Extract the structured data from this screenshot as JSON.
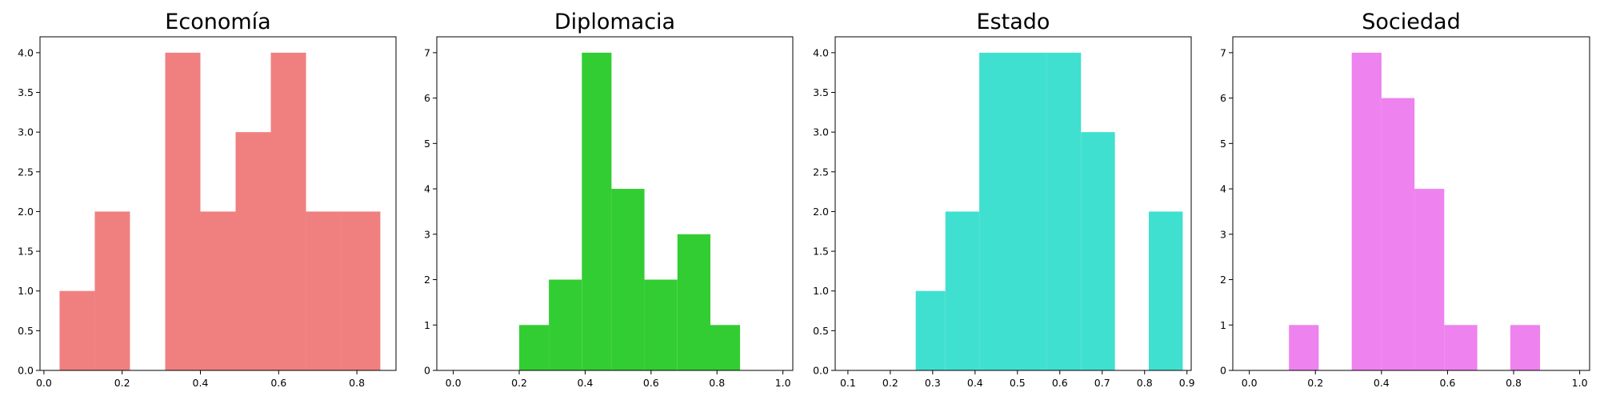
{
  "chart_data": [
    {
      "type": "bar",
      "title": "Economía",
      "color": "#f08080",
      "xlim": [
        -0.01,
        0.9
      ],
      "ylim": [
        0,
        4.2
      ],
      "xticks": [
        "0.0",
        "0.2",
        "0.4",
        "0.6",
        "0.8"
      ],
      "yticks": [
        "0.0",
        "0.5",
        "1.0",
        "1.5",
        "2.0",
        "2.5",
        "3.0",
        "3.5",
        "4.0"
      ],
      "bins": [
        [
          0.04,
          0.13,
          1
        ],
        [
          0.13,
          0.22,
          2
        ],
        [
          0.22,
          0.31,
          0
        ],
        [
          0.31,
          0.4,
          4
        ],
        [
          0.4,
          0.49,
          2
        ],
        [
          0.49,
          0.58,
          3
        ],
        [
          0.58,
          0.67,
          4
        ],
        [
          0.67,
          0.76,
          2
        ],
        [
          0.76,
          0.86,
          2
        ]
      ]
    },
    {
      "type": "bar",
      "title": "Diplomacia",
      "color": "#32cd32",
      "xlim": [
        -0.05,
        1.03
      ],
      "ylim": [
        0,
        7.35
      ],
      "xticks": [
        "0.0",
        "0.2",
        "0.4",
        "0.6",
        "0.8",
        "1.0"
      ],
      "yticks": [
        "0",
        "1",
        "2",
        "3",
        "4",
        "5",
        "6",
        "7"
      ],
      "bins": [
        [
          0.2,
          0.29,
          1
        ],
        [
          0.29,
          0.39,
          2
        ],
        [
          0.39,
          0.48,
          7
        ],
        [
          0.48,
          0.58,
          4
        ],
        [
          0.58,
          0.68,
          2
        ],
        [
          0.68,
          0.78,
          3
        ],
        [
          0.78,
          0.87,
          1
        ]
      ]
    },
    {
      "type": "bar",
      "title": "Estado",
      "color": "#40e0d0",
      "xlim": [
        0.07,
        0.91
      ],
      "ylim": [
        0,
        4.2
      ],
      "xticks": [
        "0.1",
        "0.2",
        "0.3",
        "0.4",
        "0.5",
        "0.6",
        "0.7",
        "0.8",
        "0.9"
      ],
      "yticks": [
        "0.0",
        "0.5",
        "1.0",
        "1.5",
        "2.0",
        "2.5",
        "3.0",
        "3.5",
        "4.0"
      ],
      "bins": [
        [
          0.26,
          0.33,
          1
        ],
        [
          0.33,
          0.41,
          2
        ],
        [
          0.41,
          0.49,
          4
        ],
        [
          0.49,
          0.57,
          4
        ],
        [
          0.57,
          0.65,
          4
        ],
        [
          0.65,
          0.73,
          3
        ],
        [
          0.73,
          0.81,
          0
        ],
        [
          0.81,
          0.89,
          2
        ]
      ]
    },
    {
      "type": "bar",
      "title": "Sociedad",
      "color": "#ee82ee",
      "xlim": [
        -0.05,
        1.03
      ],
      "ylim": [
        0,
        7.35
      ],
      "xticks": [
        "0.0",
        "0.2",
        "0.4",
        "0.6",
        "0.8",
        "1.0"
      ],
      "yticks": [
        "0",
        "1",
        "2",
        "3",
        "4",
        "5",
        "6",
        "7"
      ],
      "bins": [
        [
          0.12,
          0.21,
          1
        ],
        [
          0.21,
          0.31,
          0
        ],
        [
          0.31,
          0.4,
          7
        ],
        [
          0.4,
          0.5,
          6
        ],
        [
          0.5,
          0.59,
          4
        ],
        [
          0.59,
          0.69,
          1
        ],
        [
          0.69,
          0.79,
          0
        ],
        [
          0.79,
          0.88,
          1
        ]
      ]
    }
  ]
}
